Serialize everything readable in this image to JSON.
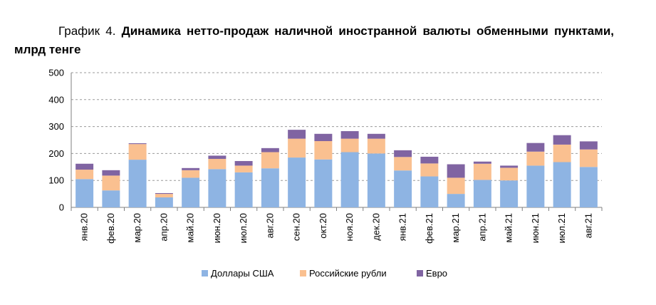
{
  "title": {
    "prefix": "График 4.",
    "main": "Динамика нетто-продаж наличной иностранной валюты обменными пунктами, млрд тенге"
  },
  "colors": {
    "usd": "#8EB4E3",
    "rub": "#FAC090",
    "eur": "#8064A2",
    "grid": "#9a9a9a",
    "axis": "#7f7f7f"
  },
  "chart_data": {
    "type": "bar",
    "stacked": true,
    "categories": [
      "янв.20",
      "фев.20",
      "мар.20",
      "апр.20",
      "май.20",
      "июн.20",
      "июл.20",
      "авг.20",
      "сен.20",
      "окт.20",
      "ноя.20",
      "дек.20",
      "янв.21",
      "фев.21",
      "мар.21",
      "апр.21",
      "май.21",
      "июн.21",
      "июл.21",
      "авг.21"
    ],
    "series": [
      {
        "name": "Доллары США",
        "color_key": "usd",
        "values": [
          105,
          63,
          177,
          37,
          110,
          142,
          130,
          145,
          185,
          178,
          205,
          200,
          137,
          115,
          50,
          102,
          100,
          155,
          168,
          150
        ]
      },
      {
        "name": "Российские рубли",
        "color_key": "rub",
        "values": [
          35,
          55,
          58,
          13,
          28,
          38,
          25,
          60,
          70,
          68,
          50,
          55,
          50,
          48,
          60,
          60,
          47,
          52,
          65,
          65
        ]
      },
      {
        "name": "Евро",
        "color_key": "eur",
        "values": [
          22,
          20,
          3,
          3,
          8,
          12,
          17,
          15,
          33,
          27,
          28,
          18,
          25,
          25,
          50,
          8,
          8,
          32,
          35,
          30
        ]
      }
    ],
    "yticks": [
      0,
      100,
      200,
      300,
      400,
      500
    ],
    "ylim": [
      0,
      500
    ],
    "grid": true,
    "legend": "bottom"
  }
}
